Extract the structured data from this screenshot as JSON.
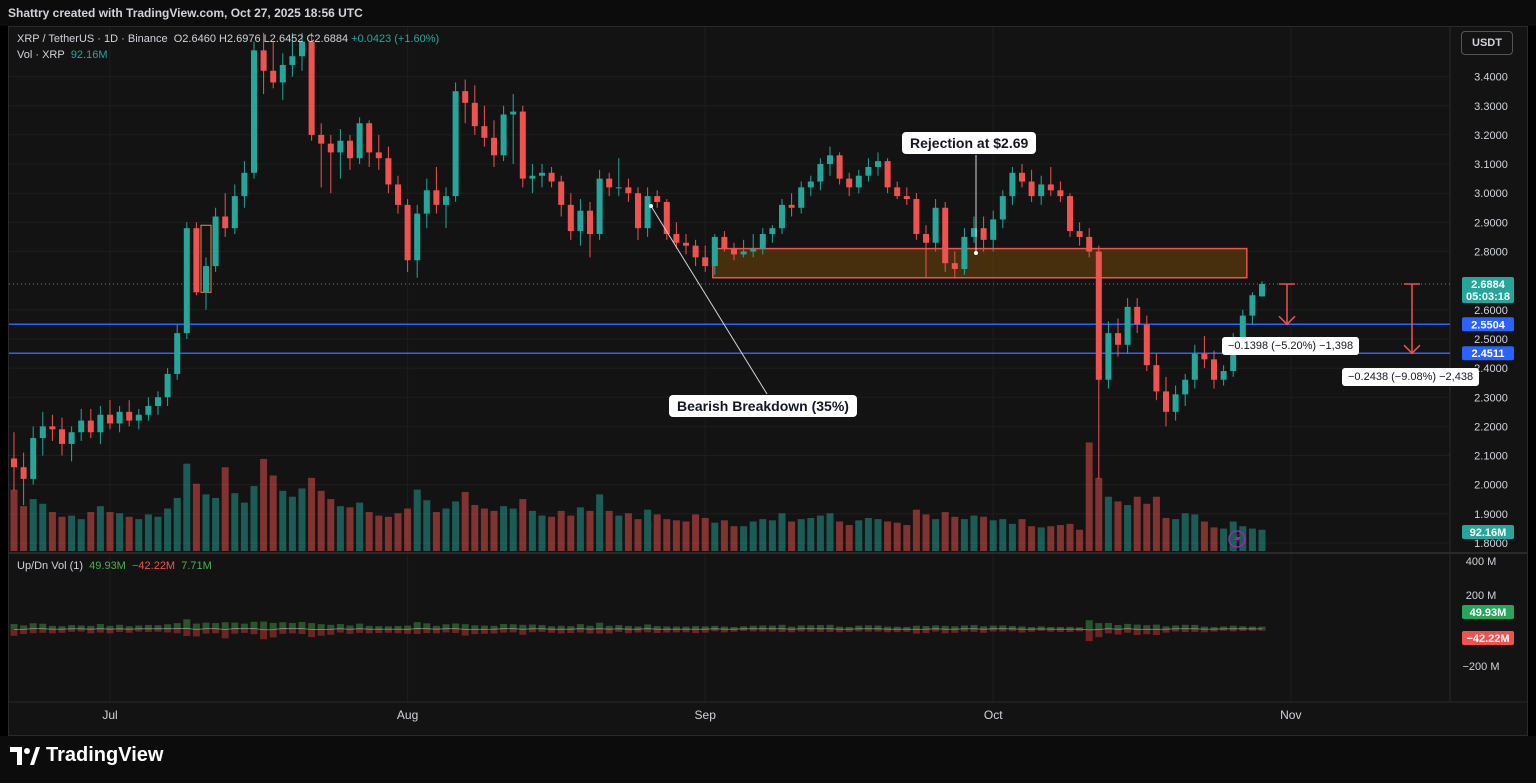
{
  "header": {
    "credit": "Shattry created with TradingView.com, Oct 27, 2025 18:56 UTC"
  },
  "legend": {
    "symbol": "XRP / TetherUS · 1D · Binance",
    "open": "O2.6460",
    "high": "H2.6976",
    "low": "L2.6452",
    "close": "C2.6884",
    "change": "+0.0423 (+1.60%)",
    "volume_label": "Vol · XRP",
    "volume_value": "92.16M",
    "updown_label": "Up/Dn Vol (1)",
    "up_value": "49.93M",
    "down_value": "−42.22M",
    "delta_value": "7.71M"
  },
  "currency": "USDT",
  "annotations": {
    "rejection": "Rejection at $2.69",
    "breakdown": "Bearish Breakdown (35%)",
    "measure1": "−0.1398 (−5.20%) −1,398",
    "measure2": "−0.2438 (−9.08%) −2,438"
  },
  "price_labels": {
    "last": "2.6884",
    "countdown": "05:03:18",
    "level1": "2.5504",
    "level2": "2.4511",
    "vol": "92.16M",
    "up": "49.93M",
    "down": "−42.22M"
  },
  "colors": {
    "up": "#26a69a",
    "down": "#ef5350",
    "level": "#2962ff",
    "zone_fill": "#5a3a0e",
    "zone_border": "#ef5350"
  },
  "footer": {
    "brand": "TradingView"
  },
  "chart_data": {
    "type": "candlestick",
    "symbol": "XRP/USDT",
    "interval": "1D",
    "y_ticks": [
      3.4,
      3.3,
      3.2,
      3.1,
      3.0,
      2.9,
      2.8,
      2.6,
      2.5,
      2.4,
      2.3,
      2.2,
      2.1,
      2.0,
      1.9,
      1.8
    ],
    "y_tick_labels": [
      "3.4000",
      "3.3000",
      "3.2000",
      "3.1000",
      "3.0000",
      "2.9000",
      "2.8000",
      "2.6000",
      "2.5000",
      "2.4000",
      "2.3000",
      "2.2000",
      "2.1000",
      "2.0000",
      "1.9000",
      "1.8000"
    ],
    "ylim": [
      1.8,
      3.52
    ],
    "x_ticks": [
      {
        "label": "Jul",
        "index": 10
      },
      {
        "label": "Aug",
        "index": 41
      },
      {
        "label": "Sep",
        "index": 72
      },
      {
        "label": "Oct",
        "index": 102
      },
      {
        "label": "Nov",
        "index": 133
      }
    ],
    "updown_ticks": [
      "400 M",
      "200 M",
      "−200 M"
    ],
    "horizontal_levels": [
      2.5504,
      2.4511
    ],
    "resistance_zone": [
      2.71,
      2.81
    ],
    "candles": [
      {
        "o": 2.09,
        "h": 2.18,
        "l": 1.98,
        "c": 2.06
      },
      {
        "o": 2.06,
        "h": 2.11,
        "l": 1.93,
        "c": 2.02
      },
      {
        "o": 2.02,
        "h": 2.2,
        "l": 2.0,
        "c": 2.16
      },
      {
        "o": 2.16,
        "h": 2.25,
        "l": 2.1,
        "c": 2.2
      },
      {
        "o": 2.2,
        "h": 2.24,
        "l": 2.15,
        "c": 2.19
      },
      {
        "o": 2.19,
        "h": 2.23,
        "l": 2.1,
        "c": 2.14
      },
      {
        "o": 2.14,
        "h": 2.2,
        "l": 2.08,
        "c": 2.18
      },
      {
        "o": 2.18,
        "h": 2.26,
        "l": 2.15,
        "c": 2.22
      },
      {
        "o": 2.22,
        "h": 2.26,
        "l": 2.16,
        "c": 2.18
      },
      {
        "o": 2.18,
        "h": 2.27,
        "l": 2.14,
        "c": 2.24
      },
      {
        "o": 2.24,
        "h": 2.29,
        "l": 2.19,
        "c": 2.21
      },
      {
        "o": 2.21,
        "h": 2.27,
        "l": 2.18,
        "c": 2.25
      },
      {
        "o": 2.25,
        "h": 2.29,
        "l": 2.2,
        "c": 2.22
      },
      {
        "o": 2.22,
        "h": 2.26,
        "l": 2.19,
        "c": 2.24
      },
      {
        "o": 2.24,
        "h": 2.3,
        "l": 2.22,
        "c": 2.27
      },
      {
        "o": 2.27,
        "h": 2.32,
        "l": 2.24,
        "c": 2.3
      },
      {
        "o": 2.3,
        "h": 2.4,
        "l": 2.27,
        "c": 2.38
      },
      {
        "o": 2.38,
        "h": 2.55,
        "l": 2.36,
        "c": 2.52
      },
      {
        "o": 2.52,
        "h": 2.9,
        "l": 2.5,
        "c": 2.88
      },
      {
        "o": 2.88,
        "h": 2.9,
        "l": 2.65,
        "c": 2.66
      },
      {
        "o": 2.66,
        "h": 2.78,
        "l": 2.6,
        "c": 2.75
      },
      {
        "o": 2.75,
        "h": 2.95,
        "l": 2.73,
        "c": 2.92
      },
      {
        "o": 2.92,
        "h": 3.0,
        "l": 2.85,
        "c": 2.88
      },
      {
        "o": 2.88,
        "h": 3.03,
        "l": 2.86,
        "c": 2.99
      },
      {
        "o": 2.99,
        "h": 3.11,
        "l": 2.95,
        "c": 3.07
      },
      {
        "o": 3.07,
        "h": 3.52,
        "l": 3.05,
        "c": 3.49
      },
      {
        "o": 3.49,
        "h": 3.55,
        "l": 3.34,
        "c": 3.42
      },
      {
        "o": 3.42,
        "h": 3.52,
        "l": 3.36,
        "c": 3.38
      },
      {
        "o": 3.38,
        "h": 3.48,
        "l": 3.32,
        "c": 3.44
      },
      {
        "o": 3.44,
        "h": 3.55,
        "l": 3.4,
        "c": 3.47
      },
      {
        "o": 3.47,
        "h": 3.55,
        "l": 3.42,
        "c": 3.52
      },
      {
        "o": 3.52,
        "h": 3.55,
        "l": 3.18,
        "c": 3.2
      },
      {
        "o": 3.2,
        "h": 3.24,
        "l": 3.02,
        "c": 3.17
      },
      {
        "o": 3.17,
        "h": 3.2,
        "l": 3.0,
        "c": 3.14
      },
      {
        "o": 3.14,
        "h": 3.22,
        "l": 3.05,
        "c": 3.18
      },
      {
        "o": 3.18,
        "h": 3.2,
        "l": 3.08,
        "c": 3.12
      },
      {
        "o": 3.12,
        "h": 3.26,
        "l": 3.1,
        "c": 3.24
      },
      {
        "o": 3.24,
        "h": 3.25,
        "l": 3.09,
        "c": 3.14
      },
      {
        "o": 3.14,
        "h": 3.2,
        "l": 3.08,
        "c": 3.12
      },
      {
        "o": 3.12,
        "h": 3.16,
        "l": 3.0,
        "c": 3.03
      },
      {
        "o": 3.03,
        "h": 3.06,
        "l": 2.93,
        "c": 2.96
      },
      {
        "o": 2.96,
        "h": 2.98,
        "l": 2.73,
        "c": 2.77
      },
      {
        "o": 2.77,
        "h": 2.96,
        "l": 2.71,
        "c": 2.93
      },
      {
        "o": 2.93,
        "h": 3.05,
        "l": 2.88,
        "c": 3.01
      },
      {
        "o": 3.01,
        "h": 3.09,
        "l": 2.93,
        "c": 2.96
      },
      {
        "o": 2.96,
        "h": 3.02,
        "l": 2.88,
        "c": 2.99
      },
      {
        "o": 2.99,
        "h": 3.38,
        "l": 2.97,
        "c": 3.35
      },
      {
        "o": 3.35,
        "h": 3.39,
        "l": 3.24,
        "c": 3.31
      },
      {
        "o": 3.31,
        "h": 3.37,
        "l": 3.2,
        "c": 3.23
      },
      {
        "o": 3.23,
        "h": 3.3,
        "l": 3.16,
        "c": 3.19
      },
      {
        "o": 3.19,
        "h": 3.25,
        "l": 3.09,
        "c": 3.13
      },
      {
        "o": 3.13,
        "h": 3.3,
        "l": 3.11,
        "c": 3.27
      },
      {
        "o": 3.27,
        "h": 3.34,
        "l": 3.1,
        "c": 3.28
      },
      {
        "o": 3.28,
        "h": 3.3,
        "l": 3.02,
        "c": 3.05
      },
      {
        "o": 3.05,
        "h": 3.1,
        "l": 3.0,
        "c": 3.06
      },
      {
        "o": 3.06,
        "h": 3.1,
        "l": 3.02,
        "c": 3.07
      },
      {
        "o": 3.07,
        "h": 3.09,
        "l": 3.02,
        "c": 3.04
      },
      {
        "o": 3.04,
        "h": 3.06,
        "l": 2.92,
        "c": 2.96
      },
      {
        "o": 2.96,
        "h": 3.0,
        "l": 2.84,
        "c": 2.87
      },
      {
        "o": 2.87,
        "h": 2.98,
        "l": 2.82,
        "c": 2.94
      },
      {
        "o": 2.94,
        "h": 2.97,
        "l": 2.78,
        "c": 2.86
      },
      {
        "o": 2.86,
        "h": 3.08,
        "l": 2.84,
        "c": 3.05
      },
      {
        "o": 3.05,
        "h": 3.07,
        "l": 2.99,
        "c": 3.02
      },
      {
        "o": 3.02,
        "h": 3.12,
        "l": 2.99,
        "c": 3.02
      },
      {
        "o": 3.02,
        "h": 3.05,
        "l": 2.97,
        "c": 3.0
      },
      {
        "o": 3.0,
        "h": 3.02,
        "l": 2.84,
        "c": 2.88
      },
      {
        "o": 2.88,
        "h": 3.02,
        "l": 2.85,
        "c": 2.99
      },
      {
        "o": 2.99,
        "h": 3.01,
        "l": 2.95,
        "c": 2.97
      },
      {
        "o": 2.97,
        "h": 2.98,
        "l": 2.84,
        "c": 2.86
      },
      {
        "o": 2.86,
        "h": 2.9,
        "l": 2.81,
        "c": 2.83
      },
      {
        "o": 2.83,
        "h": 2.86,
        "l": 2.79,
        "c": 2.82
      },
      {
        "o": 2.82,
        "h": 2.84,
        "l": 2.75,
        "c": 2.78
      },
      {
        "o": 2.78,
        "h": 2.82,
        "l": 2.73,
        "c": 2.75
      },
      {
        "o": 2.75,
        "h": 2.86,
        "l": 2.72,
        "c": 2.85
      },
      {
        "o": 2.85,
        "h": 2.87,
        "l": 2.8,
        "c": 2.81
      },
      {
        "o": 2.81,
        "h": 2.83,
        "l": 2.77,
        "c": 2.79
      },
      {
        "o": 2.79,
        "h": 2.84,
        "l": 2.78,
        "c": 2.8
      },
      {
        "o": 2.8,
        "h": 2.86,
        "l": 2.78,
        "c": 2.81
      },
      {
        "o": 2.81,
        "h": 2.88,
        "l": 2.79,
        "c": 2.86
      },
      {
        "o": 2.86,
        "h": 2.89,
        "l": 2.83,
        "c": 2.88
      },
      {
        "o": 2.88,
        "h": 2.98,
        "l": 2.86,
        "c": 2.96
      },
      {
        "o": 2.96,
        "h": 3.0,
        "l": 2.92,
        "c": 2.95
      },
      {
        "o": 2.95,
        "h": 3.04,
        "l": 2.93,
        "c": 3.02
      },
      {
        "o": 3.02,
        "h": 3.06,
        "l": 2.99,
        "c": 3.04
      },
      {
        "o": 3.04,
        "h": 3.12,
        "l": 3.01,
        "c": 3.1
      },
      {
        "o": 3.1,
        "h": 3.16,
        "l": 3.06,
        "c": 3.13
      },
      {
        "o": 3.13,
        "h": 3.14,
        "l": 3.03,
        "c": 3.05
      },
      {
        "o": 3.05,
        "h": 3.07,
        "l": 2.99,
        "c": 3.02
      },
      {
        "o": 3.02,
        "h": 3.08,
        "l": 3.0,
        "c": 3.06
      },
      {
        "o": 3.06,
        "h": 3.12,
        "l": 3.04,
        "c": 3.09
      },
      {
        "o": 3.09,
        "h": 3.14,
        "l": 3.06,
        "c": 3.11
      },
      {
        "o": 3.11,
        "h": 3.12,
        "l": 3.0,
        "c": 3.02
      },
      {
        "o": 3.02,
        "h": 3.04,
        "l": 2.98,
        "c": 2.99
      },
      {
        "o": 2.99,
        "h": 3.02,
        "l": 2.96,
        "c": 2.98
      },
      {
        "o": 2.98,
        "h": 3.0,
        "l": 2.84,
        "c": 2.86
      },
      {
        "o": 2.86,
        "h": 2.89,
        "l": 2.71,
        "c": 2.83
      },
      {
        "o": 2.83,
        "h": 2.98,
        "l": 2.8,
        "c": 2.95
      },
      {
        "o": 2.95,
        "h": 2.97,
        "l": 2.73,
        "c": 2.76
      },
      {
        "o": 2.76,
        "h": 2.8,
        "l": 2.71,
        "c": 2.74
      },
      {
        "o": 2.74,
        "h": 2.88,
        "l": 2.72,
        "c": 2.85
      },
      {
        "o": 2.85,
        "h": 2.92,
        "l": 2.83,
        "c": 2.88
      },
      {
        "o": 2.88,
        "h": 2.92,
        "l": 2.8,
        "c": 2.84
      },
      {
        "o": 2.84,
        "h": 2.94,
        "l": 2.8,
        "c": 2.91
      },
      {
        "o": 2.91,
        "h": 3.01,
        "l": 2.88,
        "c": 2.99
      },
      {
        "o": 2.99,
        "h": 3.09,
        "l": 2.96,
        "c": 3.07
      },
      {
        "o": 3.07,
        "h": 3.1,
        "l": 3.02,
        "c": 3.04
      },
      {
        "o": 3.04,
        "h": 3.08,
        "l": 2.97,
        "c": 2.99
      },
      {
        "o": 2.99,
        "h": 3.06,
        "l": 2.96,
        "c": 3.03
      },
      {
        "o": 3.03,
        "h": 3.09,
        "l": 2.99,
        "c": 3.01
      },
      {
        "o": 3.01,
        "h": 3.04,
        "l": 2.97,
        "c": 2.99
      },
      {
        "o": 2.99,
        "h": 3.0,
        "l": 2.85,
        "c": 2.87
      },
      {
        "o": 2.87,
        "h": 2.9,
        "l": 2.82,
        "c": 2.85
      },
      {
        "o": 2.85,
        "h": 2.88,
        "l": 2.78,
        "c": 2.8
      },
      {
        "o": 2.8,
        "h": 2.82,
        "l": 2.02,
        "c": 2.36
      },
      {
        "o": 2.36,
        "h": 2.56,
        "l": 2.33,
        "c": 2.52
      },
      {
        "o": 2.52,
        "h": 2.57,
        "l": 2.44,
        "c": 2.48
      },
      {
        "o": 2.48,
        "h": 2.64,
        "l": 2.45,
        "c": 2.61
      },
      {
        "o": 2.61,
        "h": 2.64,
        "l": 2.52,
        "c": 2.55
      },
      {
        "o": 2.55,
        "h": 2.58,
        "l": 2.39,
        "c": 2.41
      },
      {
        "o": 2.41,
        "h": 2.45,
        "l": 2.29,
        "c": 2.32
      },
      {
        "o": 2.32,
        "h": 2.37,
        "l": 2.2,
        "c": 2.25
      },
      {
        "o": 2.25,
        "h": 2.34,
        "l": 2.22,
        "c": 2.31
      },
      {
        "o": 2.31,
        "h": 2.38,
        "l": 2.27,
        "c": 2.36
      },
      {
        "o": 2.36,
        "h": 2.48,
        "l": 2.33,
        "c": 2.45
      },
      {
        "o": 2.45,
        "h": 2.51,
        "l": 2.4,
        "c": 2.43
      },
      {
        "o": 2.43,
        "h": 2.46,
        "l": 2.33,
        "c": 2.36
      },
      {
        "o": 2.36,
        "h": 2.41,
        "l": 2.34,
        "c": 2.39
      },
      {
        "o": 2.39,
        "h": 2.52,
        "l": 2.37,
        "c": 2.49
      },
      {
        "o": 2.49,
        "h": 2.6,
        "l": 2.47,
        "c": 2.58
      },
      {
        "o": 2.58,
        "h": 2.66,
        "l": 2.55,
        "c": 2.65
      },
      {
        "o": 2.646,
        "h": 2.6976,
        "l": 2.6452,
        "c": 2.6884
      }
    ],
    "volume": [
      0.52,
      0.38,
      0.44,
      0.4,
      0.33,
      0.29,
      0.3,
      0.27,
      0.33,
      0.38,
      0.33,
      0.32,
      0.29,
      0.27,
      0.31,
      0.29,
      0.36,
      0.45,
      0.74,
      0.57,
      0.48,
      0.45,
      0.71,
      0.49,
      0.41,
      0.55,
      0.78,
      0.64,
      0.51,
      0.46,
      0.53,
      0.62,
      0.51,
      0.44,
      0.38,
      0.37,
      0.41,
      0.33,
      0.3,
      0.29,
      0.32,
      0.36,
      0.52,
      0.43,
      0.33,
      0.36,
      0.42,
      0.5,
      0.39,
      0.36,
      0.34,
      0.38,
      0.36,
      0.44,
      0.34,
      0.3,
      0.29,
      0.34,
      0.3,
      0.37,
      0.34,
      0.48,
      0.34,
      0.3,
      0.32,
      0.27,
      0.35,
      0.31,
      0.27,
      0.26,
      0.25,
      0.31,
      0.28,
      0.24,
      0.26,
      0.21,
      0.21,
      0.25,
      0.27,
      0.26,
      0.32,
      0.25,
      0.27,
      0.28,
      0.3,
      0.32,
      0.25,
      0.22,
      0.26,
      0.28,
      0.27,
      0.25,
      0.24,
      0.22,
      0.35,
      0.31,
      0.27,
      0.33,
      0.29,
      0.27,
      0.3,
      0.29,
      0.26,
      0.27,
      0.23,
      0.27,
      0.21,
      0.2,
      0.21,
      0.22,
      0.23,
      0.18,
      0.92,
      0.62,
      0.46,
      0.42,
      0.39,
      0.46,
      0.4,
      0.46,
      0.28,
      0.27,
      0.32,
      0.31,
      0.25,
      0.2,
      0.19,
      0.25,
      0.21,
      0.19,
      0.18
    ],
    "volume_max_m": 130,
    "updown_range_m": [
      -300,
      430
    ]
  }
}
